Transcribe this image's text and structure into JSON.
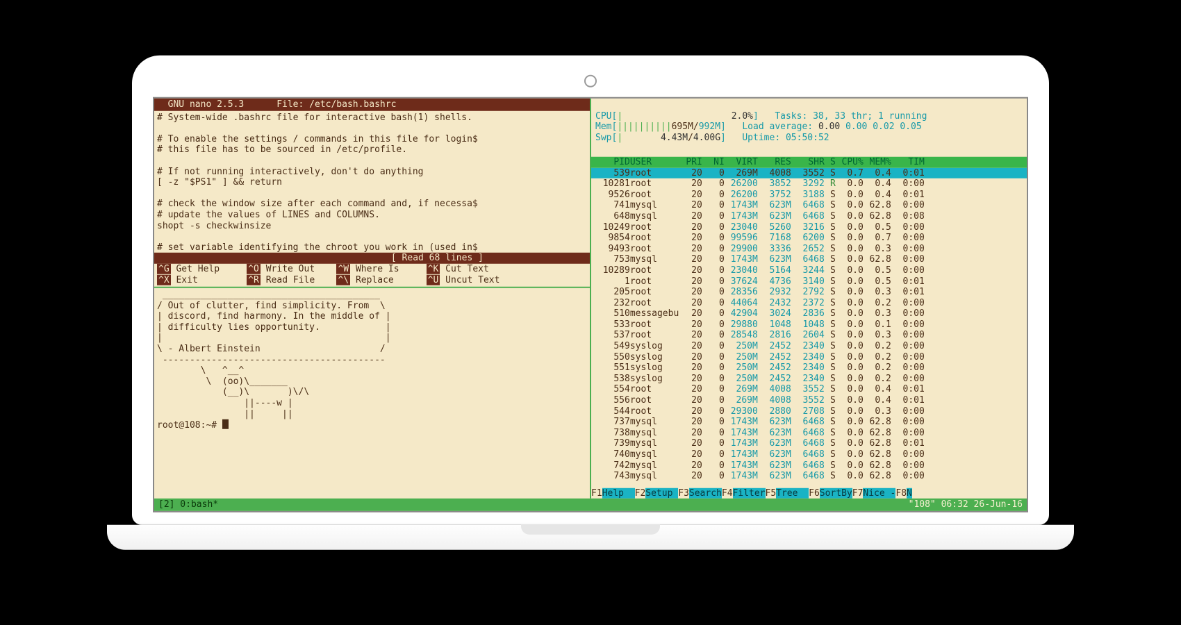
{
  "colors": {
    "bg": "#f5e9c8",
    "text": "#4a2d16",
    "titlebar_bg": "#6e2b1a",
    "titlebar_fg": "#f5e9c8",
    "green": "#4caf50",
    "cyan": "#1699a8",
    "sel_bg": "#1ab3c4",
    "sel_fg": "#083b40",
    "header_bg": "#39b54a"
  },
  "nano": {
    "title_left": "  GNU nano 2.5.3",
    "title_file": "File: /etc/bash.bashrc",
    "body": "# System-wide .bashrc file for interactive bash(1) shells.\n\n# To enable the settings / commands in this file for login$\n# this file has to be sourced in /etc/profile.\n\n# If not running interactively, don't do anything\n[ -z \"$PS1\" ] && return\n\n# check the window size after each command and, if necessa$\n# update the values of LINES and COLUMNS.\nshopt -s checkwinsize\n\n# set variable identifying the chroot you work in (used in$",
    "status": "[ Read 68 lines ]",
    "menu": [
      {
        "sc": "^G",
        "label": "Get Help"
      },
      {
        "sc": "^O",
        "label": "Write Out"
      },
      {
        "sc": "^W",
        "label": "Where Is"
      },
      {
        "sc": "^K",
        "label": "Cut Text"
      },
      {
        "sc": "^X",
        "label": "Exit"
      },
      {
        "sc": "^R",
        "label": "Read File"
      },
      {
        "sc": "^\\",
        "label": "Replace"
      },
      {
        "sc": "^U",
        "label": "Uncut Text"
      }
    ]
  },
  "shell": {
    "cow": " ________________________________________\n/ Out of clutter, find simplicity. From  \\\n| discord, find harmony. In the middle of |\n| difficulty lies opportunity.            |\n|                                         |\n\\ - Albert Einstein                      /\n -----------------------------------------\n        \\   ^__^\n         \\  (oo)\\_______\n            (__)\\       )\\/\\\n                ||----w |\n                ||     ||",
    "prompt": "root@108:~# "
  },
  "htop": {
    "cpu": {
      "label": "CPU",
      "bar": "|",
      "pct": "2.0%"
    },
    "mem": {
      "label": "Mem",
      "bar": "||||||||||",
      "used": "695M",
      "total": "992M"
    },
    "swp": {
      "label": "Swp",
      "bar": "|",
      "used": "4.43M",
      "total": "4.00G"
    },
    "tasks": "Tasks: 38, 33 thr; 1 running",
    "load_lbl": "Load average:",
    "load_v": "0.00 0.02 0.05",
    "uptime_lbl": "Uptime:",
    "uptime_v": "05:50:52",
    "cols": [
      "PID",
      "USER",
      "PRI",
      "NI",
      "VIRT",
      "RES",
      "SHR",
      "S",
      "CPU%",
      "MEM%",
      "TIM"
    ],
    "widths": [
      6,
      9,
      4,
      4,
      6,
      6,
      6,
      2,
      5,
      5,
      6
    ],
    "selected": 0,
    "rows": [
      [
        "539",
        "root",
        "20",
        "0",
        "269M",
        "4008",
        "3552",
        "S",
        "0.7",
        "0.4",
        "0:01"
      ],
      [
        "10281",
        "root",
        "20",
        "0",
        "26200",
        "3852",
        "3292",
        "R",
        "0.0",
        "0.4",
        "0:00"
      ],
      [
        "9526",
        "root",
        "20",
        "0",
        "26200",
        "3752",
        "3188",
        "S",
        "0.0",
        "0.4",
        "0:01"
      ],
      [
        "741",
        "mysql",
        "20",
        "0",
        "1743M",
        "623M",
        "6468",
        "S",
        "0.0",
        "62.8",
        "0:00"
      ],
      [
        "648",
        "mysql",
        "20",
        "0",
        "1743M",
        "623M",
        "6468",
        "S",
        "0.0",
        "62.8",
        "0:08"
      ],
      [
        "10249",
        "root",
        "20",
        "0",
        "23040",
        "5260",
        "3216",
        "S",
        "0.0",
        "0.5",
        "0:00"
      ],
      [
        "9854",
        "root",
        "20",
        "0",
        "99596",
        "7168",
        "6200",
        "S",
        "0.0",
        "0.7",
        "0:00"
      ],
      [
        "9493",
        "root",
        "20",
        "0",
        "29900",
        "3336",
        "2652",
        "S",
        "0.0",
        "0.3",
        "0:00"
      ],
      [
        "753",
        "mysql",
        "20",
        "0",
        "1743M",
        "623M",
        "6468",
        "S",
        "0.0",
        "62.8",
        "0:00"
      ],
      [
        "10289",
        "root",
        "20",
        "0",
        "23040",
        "5164",
        "3244",
        "S",
        "0.0",
        "0.5",
        "0:00"
      ],
      [
        "1",
        "root",
        "20",
        "0",
        "37624",
        "4736",
        "3140",
        "S",
        "0.0",
        "0.5",
        "0:01"
      ],
      [
        "205",
        "root",
        "20",
        "0",
        "28356",
        "2932",
        "2792",
        "S",
        "0.0",
        "0.3",
        "0:01"
      ],
      [
        "232",
        "root",
        "20",
        "0",
        "44064",
        "2432",
        "2372",
        "S",
        "0.0",
        "0.2",
        "0:00"
      ],
      [
        "510",
        "messagebu",
        "20",
        "0",
        "42904",
        "3024",
        "2836",
        "S",
        "0.0",
        "0.3",
        "0:00"
      ],
      [
        "533",
        "root",
        "20",
        "0",
        "29880",
        "1048",
        "1048",
        "S",
        "0.0",
        "0.1",
        "0:00"
      ],
      [
        "537",
        "root",
        "20",
        "0",
        "28548",
        "2816",
        "2604",
        "S",
        "0.0",
        "0.3",
        "0:00"
      ],
      [
        "549",
        "syslog",
        "20",
        "0",
        "250M",
        "2452",
        "2340",
        "S",
        "0.0",
        "0.2",
        "0:00"
      ],
      [
        "550",
        "syslog",
        "20",
        "0",
        "250M",
        "2452",
        "2340",
        "S",
        "0.0",
        "0.2",
        "0:00"
      ],
      [
        "551",
        "syslog",
        "20",
        "0",
        "250M",
        "2452",
        "2340",
        "S",
        "0.0",
        "0.2",
        "0:00"
      ],
      [
        "538",
        "syslog",
        "20",
        "0",
        "250M",
        "2452",
        "2340",
        "S",
        "0.0",
        "0.2",
        "0:00"
      ],
      [
        "554",
        "root",
        "20",
        "0",
        "269M",
        "4008",
        "3552",
        "S",
        "0.0",
        "0.4",
        "0:01"
      ],
      [
        "556",
        "root",
        "20",
        "0",
        "269M",
        "4008",
        "3552",
        "S",
        "0.0",
        "0.4",
        "0:01"
      ],
      [
        "544",
        "root",
        "20",
        "0",
        "29300",
        "2880",
        "2708",
        "S",
        "0.0",
        "0.3",
        "0:00"
      ],
      [
        "737",
        "mysql",
        "20",
        "0",
        "1743M",
        "623M",
        "6468",
        "S",
        "0.0",
        "62.8",
        "0:00"
      ],
      [
        "738",
        "mysql",
        "20",
        "0",
        "1743M",
        "623M",
        "6468",
        "S",
        "0.0",
        "62.8",
        "0:00"
      ],
      [
        "739",
        "mysql",
        "20",
        "0",
        "1743M",
        "623M",
        "6468",
        "S",
        "0.0",
        "62.8",
        "0:01"
      ],
      [
        "740",
        "mysql",
        "20",
        "0",
        "1743M",
        "623M",
        "6468",
        "S",
        "0.0",
        "62.8",
        "0:00"
      ],
      [
        "742",
        "mysql",
        "20",
        "0",
        "1743M",
        "623M",
        "6468",
        "S",
        "0.0",
        "62.8",
        "0:00"
      ],
      [
        "743",
        "mysql",
        "20",
        "0",
        "1743M",
        "623M",
        "6468",
        "S",
        "0.0",
        "62.8",
        "0:00"
      ]
    ],
    "fkeys": [
      {
        "f": "F1",
        "l": "Help  "
      },
      {
        "f": "F2",
        "l": "Setup "
      },
      {
        "f": "F3",
        "l": "Search"
      },
      {
        "f": "F4",
        "l": "Filter"
      },
      {
        "f": "F5",
        "l": "Tree  "
      },
      {
        "f": "F6",
        "l": "SortBy"
      },
      {
        "f": "F7",
        "l": "Nice -"
      },
      {
        "f": "F8",
        "l": "N"
      }
    ]
  },
  "tmux": {
    "left": "[2] 0:bash*",
    "right": "\"108\" 06:32 26-Jun-16"
  }
}
